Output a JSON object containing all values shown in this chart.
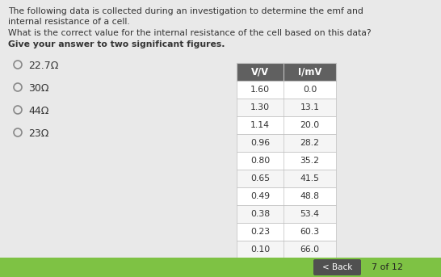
{
  "title_line1": "The following data is collected during an investigation to determine the emf and",
  "title_line2": "internal resistance of a cell.",
  "question_line1": "What is the correct value for the internal resistance of the cell based on this data?",
  "question_line2": "Give your answer to two significant figures.",
  "options": [
    "22.7Ω",
    "30Ω",
    "44Ω",
    "23Ω"
  ],
  "table_headers": [
    "V/V",
    "I/mV"
  ],
  "table_data_v": [
    "1.60",
    "1.30",
    "1.14",
    "0.96",
    "0.80",
    "0.65",
    "0.49",
    "0.38",
    "0.23",
    "0.10"
  ],
  "table_data_i": [
    "0.0",
    "13.1",
    "20.0",
    "28.2",
    "35.2",
    "41.5",
    "48.8",
    "53.4",
    "60.3",
    "66.0"
  ],
  "bg_color": "#e9e9e9",
  "table_header_bg": "#606060",
  "table_header_text": "#ffffff",
  "table_row_bg1": "#ffffff",
  "table_row_bg2": "#f5f5f5",
  "table_border": "#c0c0c0",
  "footer_bg": "#7ec244",
  "back_btn_bg": "#505050",
  "back_btn_text": "< Back",
  "page_info": "7 of 12",
  "text_color": "#333333",
  "option_circle_color": "#888888",
  "font_size_body": 7.8,
  "font_size_option": 9.0,
  "font_size_table": 7.8,
  "font_size_footer": 7.5
}
